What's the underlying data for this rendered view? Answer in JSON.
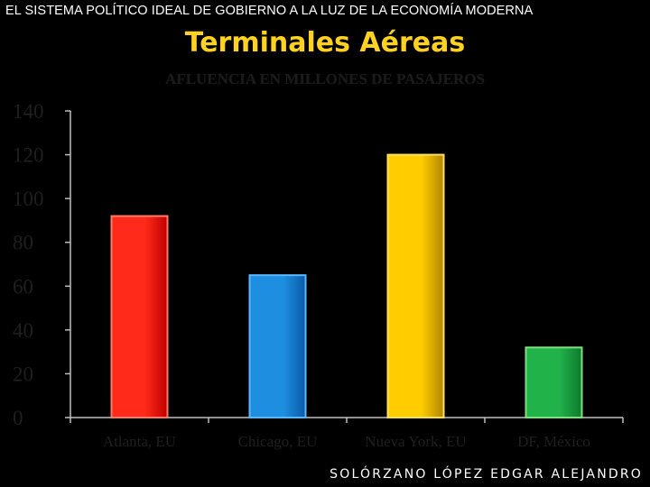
{
  "header": {
    "text": "EL SISTEMA POLÍTICO IDEAL DE GOBIERNO A LA LUZ DE LA ECONOMÍA MODERNA"
  },
  "slide_title": "Terminales Aéreas",
  "footer": {
    "author": "SOLÓRZANO LÓPEZ EDGAR ALEJANDRO"
  },
  "chart_data": {
    "type": "bar",
    "title": "AFLUENCIA EN MILLONES DE PASAJEROS",
    "categories": [
      "Atlanta, EU",
      "Chicago, EU",
      "Nueva York, EU",
      "DF, México"
    ],
    "values": [
      92,
      65,
      120,
      32
    ],
    "ylim": [
      0,
      140
    ],
    "yticks": [
      0,
      20,
      40,
      60,
      80,
      100,
      120,
      140
    ],
    "ytick_labels": [
      "0",
      "20",
      "40",
      "60",
      "80",
      "100",
      "120",
      "140"
    ],
    "xlabel": "",
    "ylabel": "",
    "grid": false,
    "legend": "none",
    "bar_colors": [
      {
        "light": "#ff2a1a",
        "dark": "#c00000",
        "border": "#ff7a6a"
      },
      {
        "light": "#1e8fe0",
        "dark": "#0a5aa8",
        "border": "#5ab8ff"
      },
      {
        "light": "#ffcc00",
        "dark": "#b08600",
        "border": "#ffe066"
      },
      {
        "light": "#22b24a",
        "dark": "#0d7a2c",
        "border": "#7fe07f"
      }
    ],
    "axis_color": "#bfbfbf",
    "tick_label_color": "#1f1f1f"
  }
}
